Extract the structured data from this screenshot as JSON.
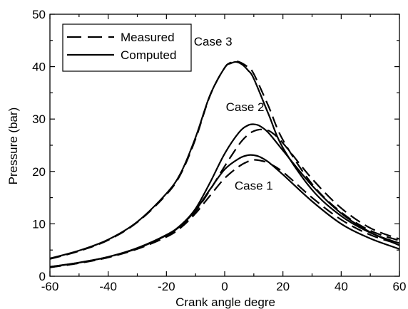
{
  "chart_data": {
    "type": "line",
    "xlabel": "Crank angle degre",
    "ylabel": "Pressure (bar)",
    "xlim": [
      -60,
      60
    ],
    "ylim": [
      0,
      50
    ],
    "xticks": [
      -60,
      -40,
      -20,
      0,
      20,
      40,
      60
    ],
    "yticks": [
      0,
      10,
      20,
      30,
      40,
      50
    ],
    "grid": false,
    "legend_position": "top-left",
    "legend": [
      {
        "label": "Measured",
        "style": "dashed"
      },
      {
        "label": "Computed",
        "style": "solid"
      }
    ],
    "annotations": [
      {
        "text": "Case 3",
        "x": -4,
        "y": 44
      },
      {
        "text": "Case 2",
        "x": 7,
        "y": 31.5
      },
      {
        "text": "Case 1",
        "x": 10,
        "y": 16.5
      }
    ],
    "series": [
      {
        "name": "Measured",
        "case": "Case 3",
        "style": "dashed",
        "x": [
          -60,
          -50,
          -40,
          -30,
          -20,
          -15,
          -10,
          -5,
          0,
          3,
          5,
          8,
          10,
          15,
          20,
          30,
          40,
          50,
          60
        ],
        "y": [
          3.3,
          4.8,
          6.9,
          10.3,
          15.6,
          19.6,
          26.2,
          34.5,
          39.8,
          40.9,
          40.9,
          39.9,
          38.6,
          32.5,
          26.0,
          17.6,
          12.2,
          8.7,
          6.8
        ]
      },
      {
        "name": "Computed",
        "case": "Case 3",
        "style": "solid",
        "x": [
          -60,
          -50,
          -40,
          -30,
          -20,
          -15,
          -10,
          -5,
          0,
          2,
          4,
          6,
          8,
          10,
          15,
          20,
          30,
          40,
          50,
          60
        ],
        "y": [
          3.4,
          4.9,
          7.0,
          10.4,
          15.8,
          19.8,
          26.5,
          34.6,
          39.8,
          40.6,
          40.9,
          40.4,
          39.3,
          37.7,
          31.0,
          24.5,
          16.5,
          11.5,
          8.3,
          6.3
        ]
      },
      {
        "name": "Measured",
        "case": "Case 2",
        "style": "dashed",
        "x": [
          -60,
          -50,
          -40,
          -30,
          -20,
          -15,
          -10,
          -5,
          0,
          5,
          8,
          10,
          12,
          14,
          16,
          20,
          30,
          40,
          50,
          60
        ],
        "y": [
          1.7,
          2.5,
          3.6,
          5.3,
          7.6,
          9.5,
          12.4,
          16.5,
          21.0,
          25.2,
          27.0,
          27.7,
          28.0,
          27.9,
          27.5,
          25.4,
          18.6,
          13.0,
          9.2,
          7.1
        ]
      },
      {
        "name": "Computed",
        "case": "Case 2",
        "style": "solid",
        "x": [
          -60,
          -50,
          -40,
          -30,
          -20,
          -15,
          -10,
          -5,
          0,
          5,
          8,
          10,
          12,
          15,
          20,
          30,
          40,
          50,
          60
        ],
        "y": [
          1.8,
          2.6,
          3.7,
          5.4,
          7.9,
          9.8,
          12.9,
          17.9,
          23.4,
          27.5,
          28.8,
          29.0,
          28.7,
          27.4,
          24.0,
          17.3,
          12.0,
          8.4,
          5.9
        ]
      },
      {
        "name": "Measured",
        "case": "Case 1",
        "style": "dashed",
        "x": [
          -60,
          -50,
          -40,
          -30,
          -20,
          -15,
          -10,
          -5,
          0,
          5,
          8,
          10,
          12,
          15,
          20,
          30,
          40,
          50,
          60
        ],
        "y": [
          1.7,
          2.5,
          3.6,
          5.2,
          7.5,
          9.3,
          12.0,
          15.4,
          18.7,
          21.0,
          21.9,
          22.2,
          22.1,
          21.6,
          19.9,
          15.0,
          10.8,
          7.9,
          6.1
        ]
      },
      {
        "name": "Computed",
        "case": "Case 1",
        "style": "solid",
        "x": [
          -60,
          -50,
          -40,
          -30,
          -20,
          -15,
          -10,
          -5,
          0,
          5,
          8,
          10,
          12,
          15,
          20,
          30,
          40,
          50,
          60
        ],
        "y": [
          1.8,
          2.6,
          3.7,
          5.3,
          7.8,
          9.7,
          12.6,
          16.6,
          20.4,
          22.5,
          23.1,
          23.1,
          22.8,
          21.8,
          19.4,
          14.3,
          10.0,
          7.2,
          5.2
        ]
      }
    ]
  }
}
